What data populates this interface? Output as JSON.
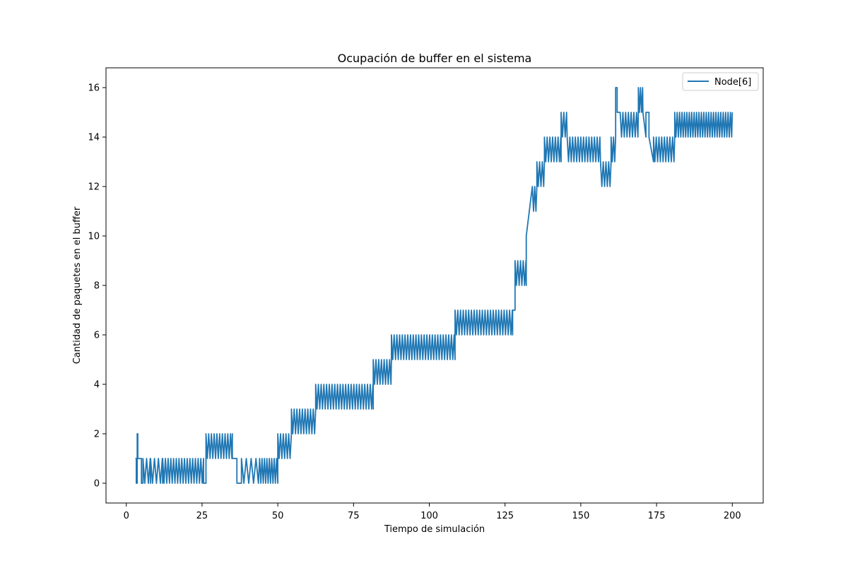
{
  "chart_data": {
    "type": "line",
    "title": "Ocupación de buffer en el sistema",
    "xlabel": "Tiempo de simulación",
    "ylabel": "Cantidad de paquetes en el buffer",
    "xlim": [
      -6.7,
      210.2
    ],
    "ylim": [
      -0.8,
      16.8
    ],
    "xticks": [
      0,
      25,
      50,
      75,
      100,
      125,
      150,
      175,
      200
    ],
    "xtick_labels": [
      "0",
      "25",
      "50",
      "75",
      "100",
      "125",
      "150",
      "175",
      "200"
    ],
    "yticks": [
      0,
      2,
      4,
      6,
      8,
      10,
      12,
      14,
      16
    ],
    "ytick_labels": [
      "0",
      "2",
      "4",
      "6",
      "8",
      "10",
      "12",
      "14",
      "16"
    ],
    "grid": false,
    "legend_position": "top-right",
    "series": [
      {
        "name": "Node[6]",
        "color": "#1f77b4",
        "segments": [
          {
            "from": 3.0,
            "to": 3.3,
            "pattern": "flat",
            "value": 1
          },
          {
            "from": 3.3,
            "to": 3.6,
            "pattern": "flat",
            "value": 0
          },
          {
            "from": 3.6,
            "to": 3.8,
            "pattern": "flat",
            "value": 2
          },
          {
            "from": 3.8,
            "to": 5.0,
            "pattern": "flat",
            "value": 1
          },
          {
            "from": 5.0,
            "to": 5.5,
            "pattern": "flat",
            "value": 0
          },
          {
            "from": 5.5,
            "to": 8.0,
            "pattern": "osc",
            "low": 0,
            "high": 1,
            "period": 1.2
          },
          {
            "from": 8.0,
            "to": 12.0,
            "pattern": "osc",
            "low": 0,
            "high": 1,
            "period": 1.3
          },
          {
            "from": 12.0,
            "to": 25.5,
            "pattern": "osc",
            "low": 0,
            "high": 1,
            "period": 0.9
          },
          {
            "from": 25.5,
            "to": 26.3,
            "pattern": "flat",
            "value": 0
          },
          {
            "from": 26.3,
            "to": 35.0,
            "pattern": "osc",
            "low": 1,
            "high": 2,
            "period": 0.9
          },
          {
            "from": 35.0,
            "to": 36.5,
            "pattern": "flat",
            "value": 1
          },
          {
            "from": 36.5,
            "to": 38.0,
            "pattern": "flat",
            "value": 0
          },
          {
            "from": 38.0,
            "to": 44.0,
            "pattern": "osc",
            "low": 0,
            "high": 1,
            "period": 1.6
          },
          {
            "from": 44.0,
            "to": 50.0,
            "pattern": "osc",
            "low": 0,
            "high": 1,
            "period": 0.8
          },
          {
            "from": 50.0,
            "to": 54.5,
            "pattern": "osc",
            "low": 1,
            "high": 2,
            "period": 0.9
          },
          {
            "from": 54.5,
            "to": 62.5,
            "pattern": "osc",
            "low": 2,
            "high": 3,
            "period": 0.9
          },
          {
            "from": 62.5,
            "to": 81.5,
            "pattern": "osc",
            "low": 3,
            "high": 4,
            "period": 0.9
          },
          {
            "from": 81.5,
            "to": 87.5,
            "pattern": "osc",
            "low": 4,
            "high": 5,
            "period": 0.9
          },
          {
            "from": 87.5,
            "to": 108.5,
            "pattern": "osc",
            "low": 5,
            "high": 6,
            "period": 0.9
          },
          {
            "from": 108.5,
            "to": 127.5,
            "pattern": "osc",
            "low": 6,
            "high": 7,
            "period": 0.9
          },
          {
            "from": 127.5,
            "to": 128.3,
            "pattern": "flat",
            "value": 7
          },
          {
            "from": 128.3,
            "to": 132.0,
            "pattern": "osc",
            "low": 8,
            "high": 9,
            "period": 0.9
          },
          {
            "from": 132.0,
            "to": 134.0,
            "pattern": "ramp",
            "start": 10,
            "end": 12
          },
          {
            "from": 134.0,
            "to": 135.5,
            "pattern": "osc",
            "low": 11,
            "high": 12,
            "period": 0.8
          },
          {
            "from": 135.5,
            "to": 138.0,
            "pattern": "osc",
            "low": 12,
            "high": 13,
            "period": 0.9
          },
          {
            "from": 138.0,
            "to": 143.5,
            "pattern": "osc",
            "low": 13,
            "high": 14,
            "period": 0.9
          },
          {
            "from": 143.5,
            "to": 145.5,
            "pattern": "osc",
            "low": 14,
            "high": 15,
            "period": 0.9
          },
          {
            "from": 145.5,
            "to": 156.5,
            "pattern": "osc",
            "low": 13,
            "high": 14,
            "period": 0.9
          },
          {
            "from": 156.5,
            "to": 160.0,
            "pattern": "osc",
            "low": 12,
            "high": 13,
            "period": 0.9
          },
          {
            "from": 160.0,
            "to": 161.5,
            "pattern": "osc",
            "low": 13,
            "high": 14,
            "period": 0.8
          },
          {
            "from": 161.5,
            "to": 162.0,
            "pattern": "flat",
            "value": 16
          },
          {
            "from": 162.0,
            "to": 163.0,
            "pattern": "flat",
            "value": 15
          },
          {
            "from": 163.0,
            "to": 169.0,
            "pattern": "osc",
            "low": 14,
            "high": 15,
            "period": 0.9
          },
          {
            "from": 169.0,
            "to": 170.5,
            "pattern": "osc",
            "low": 15,
            "high": 16,
            "period": 0.7
          },
          {
            "from": 170.5,
            "to": 171.5,
            "pattern": "ramp",
            "start": 15,
            "end": 14
          },
          {
            "from": 171.5,
            "to": 172.5,
            "pattern": "flat",
            "value": 15
          },
          {
            "from": 172.5,
            "to": 174.0,
            "pattern": "ramp",
            "start": 14,
            "end": 13
          },
          {
            "from": 174.0,
            "to": 181.0,
            "pattern": "osc",
            "low": 13,
            "high": 14,
            "period": 0.9
          },
          {
            "from": 181.0,
            "to": 200.0,
            "pattern": "osc",
            "low": 14,
            "high": 15,
            "period": 0.8
          }
        ]
      }
    ]
  }
}
